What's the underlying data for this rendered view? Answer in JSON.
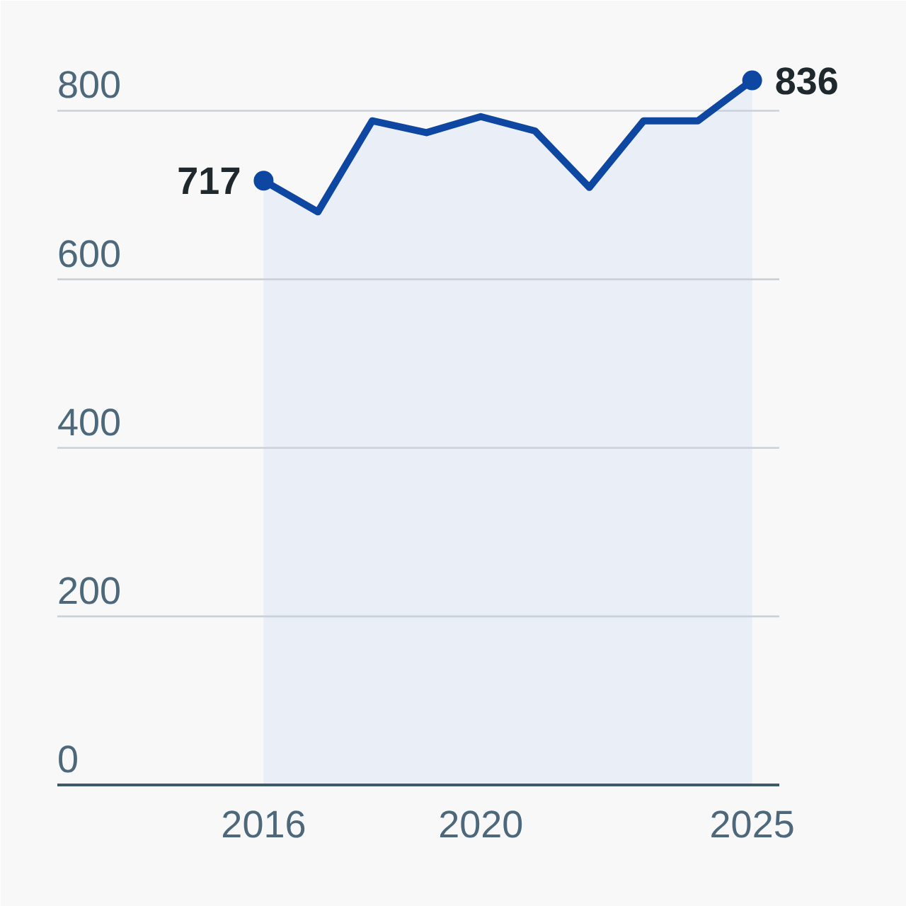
{
  "chart_data": {
    "type": "area",
    "x": [
      2016,
      2017,
      2018,
      2019,
      2020,
      2021,
      2022,
      2023,
      2024,
      2025
    ],
    "series": [
      {
        "color": "#0d47a1",
        "values": [
          717,
          680,
          788,
          774,
          793,
          776,
          709,
          788,
          788,
          836
        ]
      },
      {
        "type": "scatter",
        "marker": "circle",
        "color": "#0d47a1",
        "x": [
          2016,
          2025
        ],
        "values": [
          717,
          836
        ],
        "value_labels": [
          "717",
          "836"
        ]
      }
    ],
    "xlim": [
      2012.2,
      2025.5
    ],
    "ylim": [
      0,
      860
    ],
    "xticks": [
      2016,
      2020,
      2025
    ],
    "yticks": [
      0,
      200,
      400,
      600,
      800
    ],
    "grid": "y"
  }
}
